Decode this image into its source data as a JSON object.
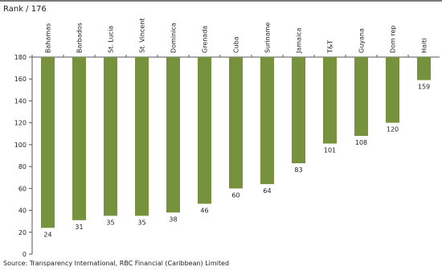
{
  "header": {
    "rank_label": "Rank / 176"
  },
  "footer": {
    "source": "Source: Transparency International, RBC Financial (Caribbean) Limited"
  },
  "chart_data": {
    "type": "bar",
    "categories": [
      "Bahamas",
      "Barbados",
      "St. Lucia",
      "St. Vincent",
      "Dominica",
      "Grenada",
      "Cuba",
      "Suriname",
      "Jamaica",
      "T&T",
      "Guyana",
      "Dom rep",
      "Haiti"
    ],
    "values": [
      24,
      31,
      35,
      35,
      38,
      46,
      60,
      64,
      83,
      101,
      108,
      120,
      159
    ],
    "data_labels": [
      "24",
      "31",
      "35",
      "35",
      "38",
      "46",
      "60",
      "64",
      "83",
      "101",
      "108",
      "120",
      "159"
    ],
    "ylim": [
      0,
      180
    ],
    "yticks": [
      0,
      20,
      40,
      60,
      80,
      100,
      120,
      140,
      160,
      180
    ],
    "y_axis_reversed": true,
    "category_labels_position": "top",
    "bar_color": "#76923c",
    "title": "",
    "xlabel": "",
    "ylabel": "Rank / 176"
  }
}
